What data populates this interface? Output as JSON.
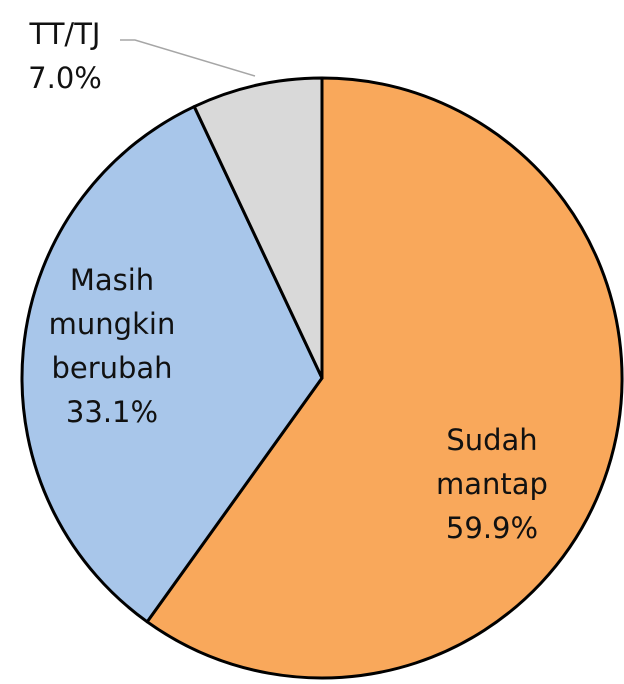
{
  "chart_data": {
    "type": "pie",
    "categories": [
      "Sudah mantap",
      "Masih mungkin berubah",
      "TT/TJ"
    ],
    "values": [
      59.9,
      33.1,
      7.0
    ],
    "value_labels": [
      "59.9%",
      "33.1%",
      "7.0%"
    ],
    "colors": [
      "#f9a85b",
      "#a8c6ea",
      "#d9d9d9"
    ]
  }
}
